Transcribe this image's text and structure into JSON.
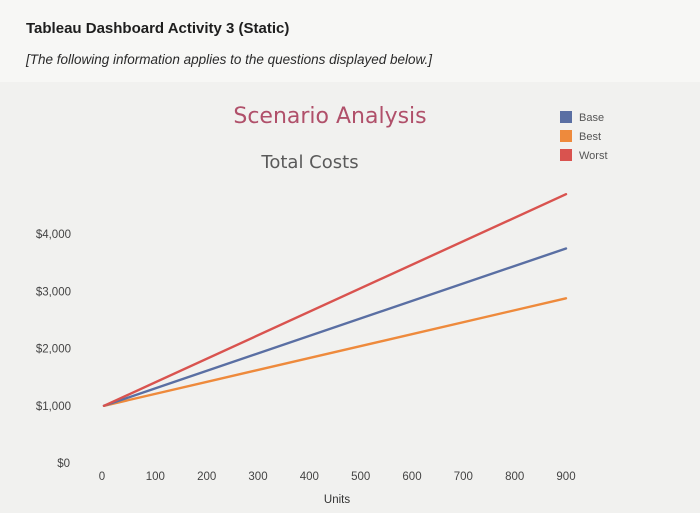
{
  "header": {
    "title": "Tableau Dashboard Activity 3 (Static)",
    "subtitle": "[The following information applies to the questions displayed below.]"
  },
  "chart_data": {
    "type": "line",
    "title": "Scenario Analysis",
    "subtitle": "Total Costs",
    "xlabel": "Units",
    "ylabel": "",
    "x": [
      0,
      900
    ],
    "xticks": [
      0,
      100,
      200,
      300,
      400,
      500,
      600,
      700,
      800,
      900
    ],
    "xtick_labels": [
      "0",
      "100",
      "200",
      "300",
      "400",
      "500",
      "600",
      "700",
      "800",
      "900"
    ],
    "yticks": [
      0,
      1000,
      2000,
      3000,
      4000
    ],
    "ytick_labels": [
      "$0",
      "$1,000",
      "$2,000",
      "$3,000",
      "$4,000"
    ],
    "xlim": [
      0,
      900
    ],
    "ylim": [
      0,
      4700
    ],
    "grid": false,
    "legend_position": "top-right",
    "series": [
      {
        "name": "Base",
        "color": "#5a6fa3",
        "values": [
          1000,
          3750
        ]
      },
      {
        "name": "Best",
        "color": "#ee8a3c",
        "values": [
          1000,
          2880
        ]
      },
      {
        "name": "Worst",
        "color": "#d9534f",
        "values": [
          1000,
          4700
        ]
      }
    ]
  }
}
